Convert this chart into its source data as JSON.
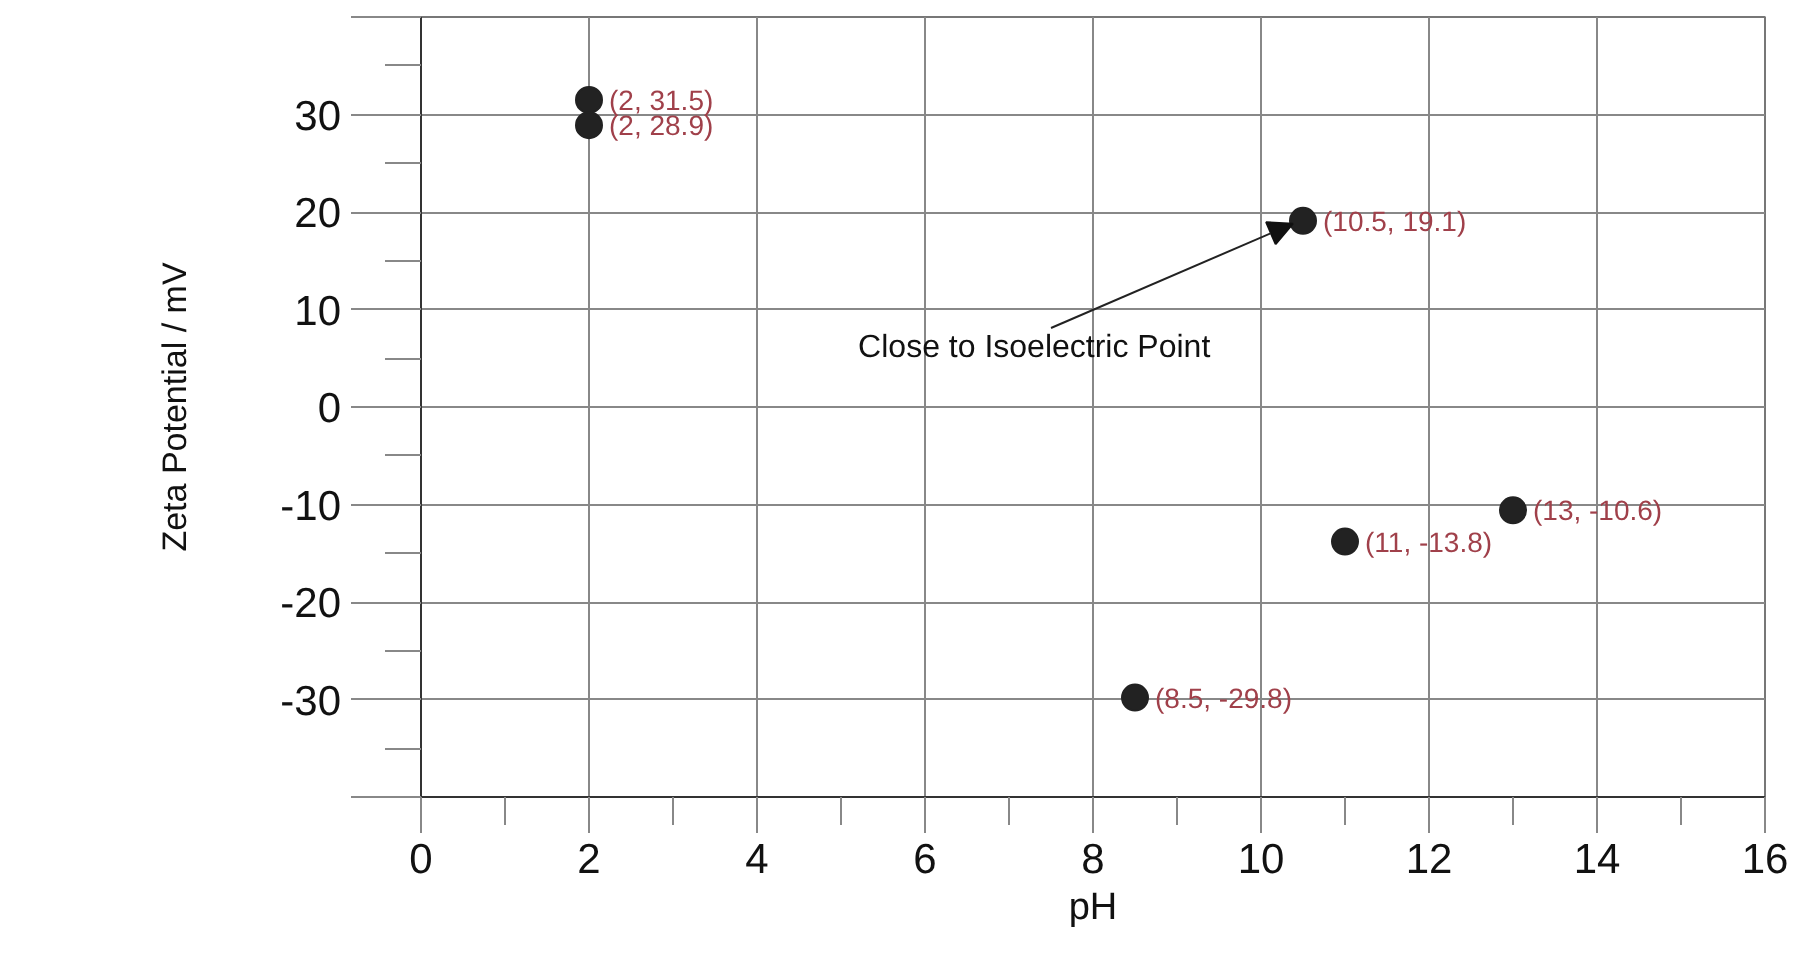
{
  "chart_data": {
    "type": "scatter",
    "xlabel": "pH",
    "ylabel": "Zeta Potential / mV",
    "x": [
      2,
      2,
      10.5,
      13,
      11,
      8.5
    ],
    "values": [
      31.5,
      28.9,
      19.1,
      -10.6,
      -13.8,
      -29.8
    ],
    "value_labels": [
      "(2, 31.5)",
      "(2, 28.9)",
      "(10.5, 19.1)",
      "(13, -10.6)",
      "(11, -13.8)",
      "(8.5, -29.8)"
    ],
    "color": "#222222",
    "marker": "circle",
    "grid": true,
    "xlim": [
      0,
      16
    ],
    "xticks": [
      0,
      2,
      4,
      6,
      8,
      10,
      12,
      14,
      16
    ],
    "ylim": [
      -40,
      40
    ],
    "yticks": [
      {
        "value": -40,
        "label": null
      },
      -30,
      -20,
      -10,
      0,
      10,
      20,
      30,
      {
        "value": 40,
        "label": null
      }
    ],
    "annotations": [
      {
        "text": "Close to Isoelectric Point",
        "x": 10.5,
        "y": 19.1
      }
    ]
  }
}
